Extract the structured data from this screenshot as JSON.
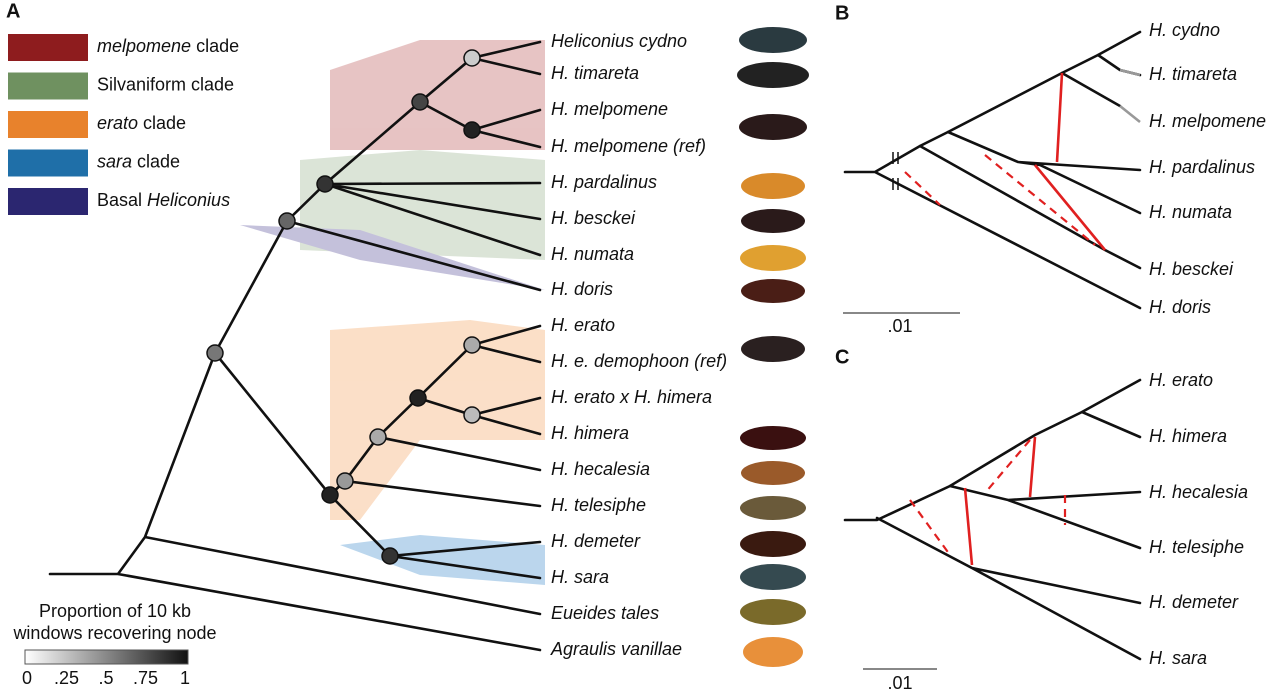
{
  "panels": {
    "a": "A",
    "b": "B",
    "c": "C"
  },
  "legend": [
    [
      {
        "text": "melpomene",
        "italic": true
      },
      {
        "text": " clade"
      }
    ],
    [
      {
        "text": "Silvaniform clade"
      }
    ],
    [
      {
        "text": "erato",
        "italic": true
      },
      {
        "text": " clade"
      }
    ],
    [
      {
        "text": "sara",
        "italic": true
      },
      {
        "text": " clade"
      }
    ],
    [
      {
        "text": "Basal "
      },
      {
        "text": "Heliconius",
        "italic": true
      }
    ]
  ],
  "legend_colors": [
    "#8e1c1e",
    "#6f9160",
    "#e8822c",
    "#1f6fa8",
    "#2b2670"
  ],
  "tree_a_taxa": [
    "Heliconius cydno",
    "H. timareta",
    "H. melpomene",
    "H. melpomene (ref)",
    "H. pardalinus",
    "H. besckei",
    "H. numata",
    "H. doris",
    "H. erato",
    "H. e. demophoon (ref)",
    "H. erato x H. himera",
    "H. himera",
    "H. hecalesia",
    "H. telesiphe",
    "H. demeter",
    "H. sara",
    "Eueides tales",
    "Agraulis vanillae"
  ],
  "colorbar": {
    "title": [
      "Proportion of 10 kb",
      "windows recovering node"
    ],
    "ticks": [
      "0",
      ".25",
      ".5",
      ".75",
      "1"
    ]
  },
  "tree_b": {
    "taxa": [
      "H. cydno",
      "H. timareta",
      "H. melpomene",
      "H. pardalinus",
      "H. numata",
      "H. besckei",
      "H. doris"
    ],
    "scale": ".01"
  },
  "tree_c": {
    "taxa": [
      "H. erato",
      "H. himera",
      "H. hecalesia",
      "H. telesiphe",
      "H. demeter",
      "H. sara"
    ],
    "scale": ".01"
  }
}
